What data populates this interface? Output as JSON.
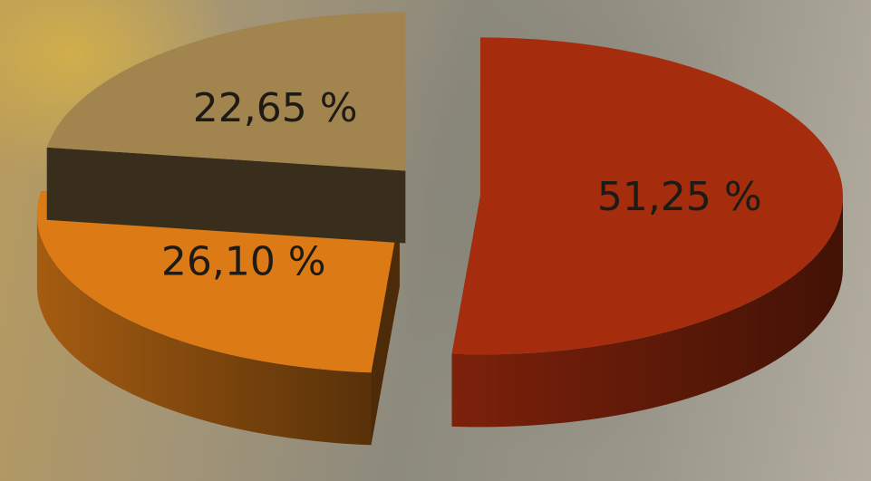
{
  "chart_data": {
    "type": "pie",
    "values": [
      51.25,
      26.1,
      22.65
    ],
    "value_labels": [
      "51,25 %",
      "26,10 %",
      "22,65 %"
    ],
    "colors": [
      "#a52c0d",
      "#dc7a16",
      "#a2844f"
    ]
  }
}
